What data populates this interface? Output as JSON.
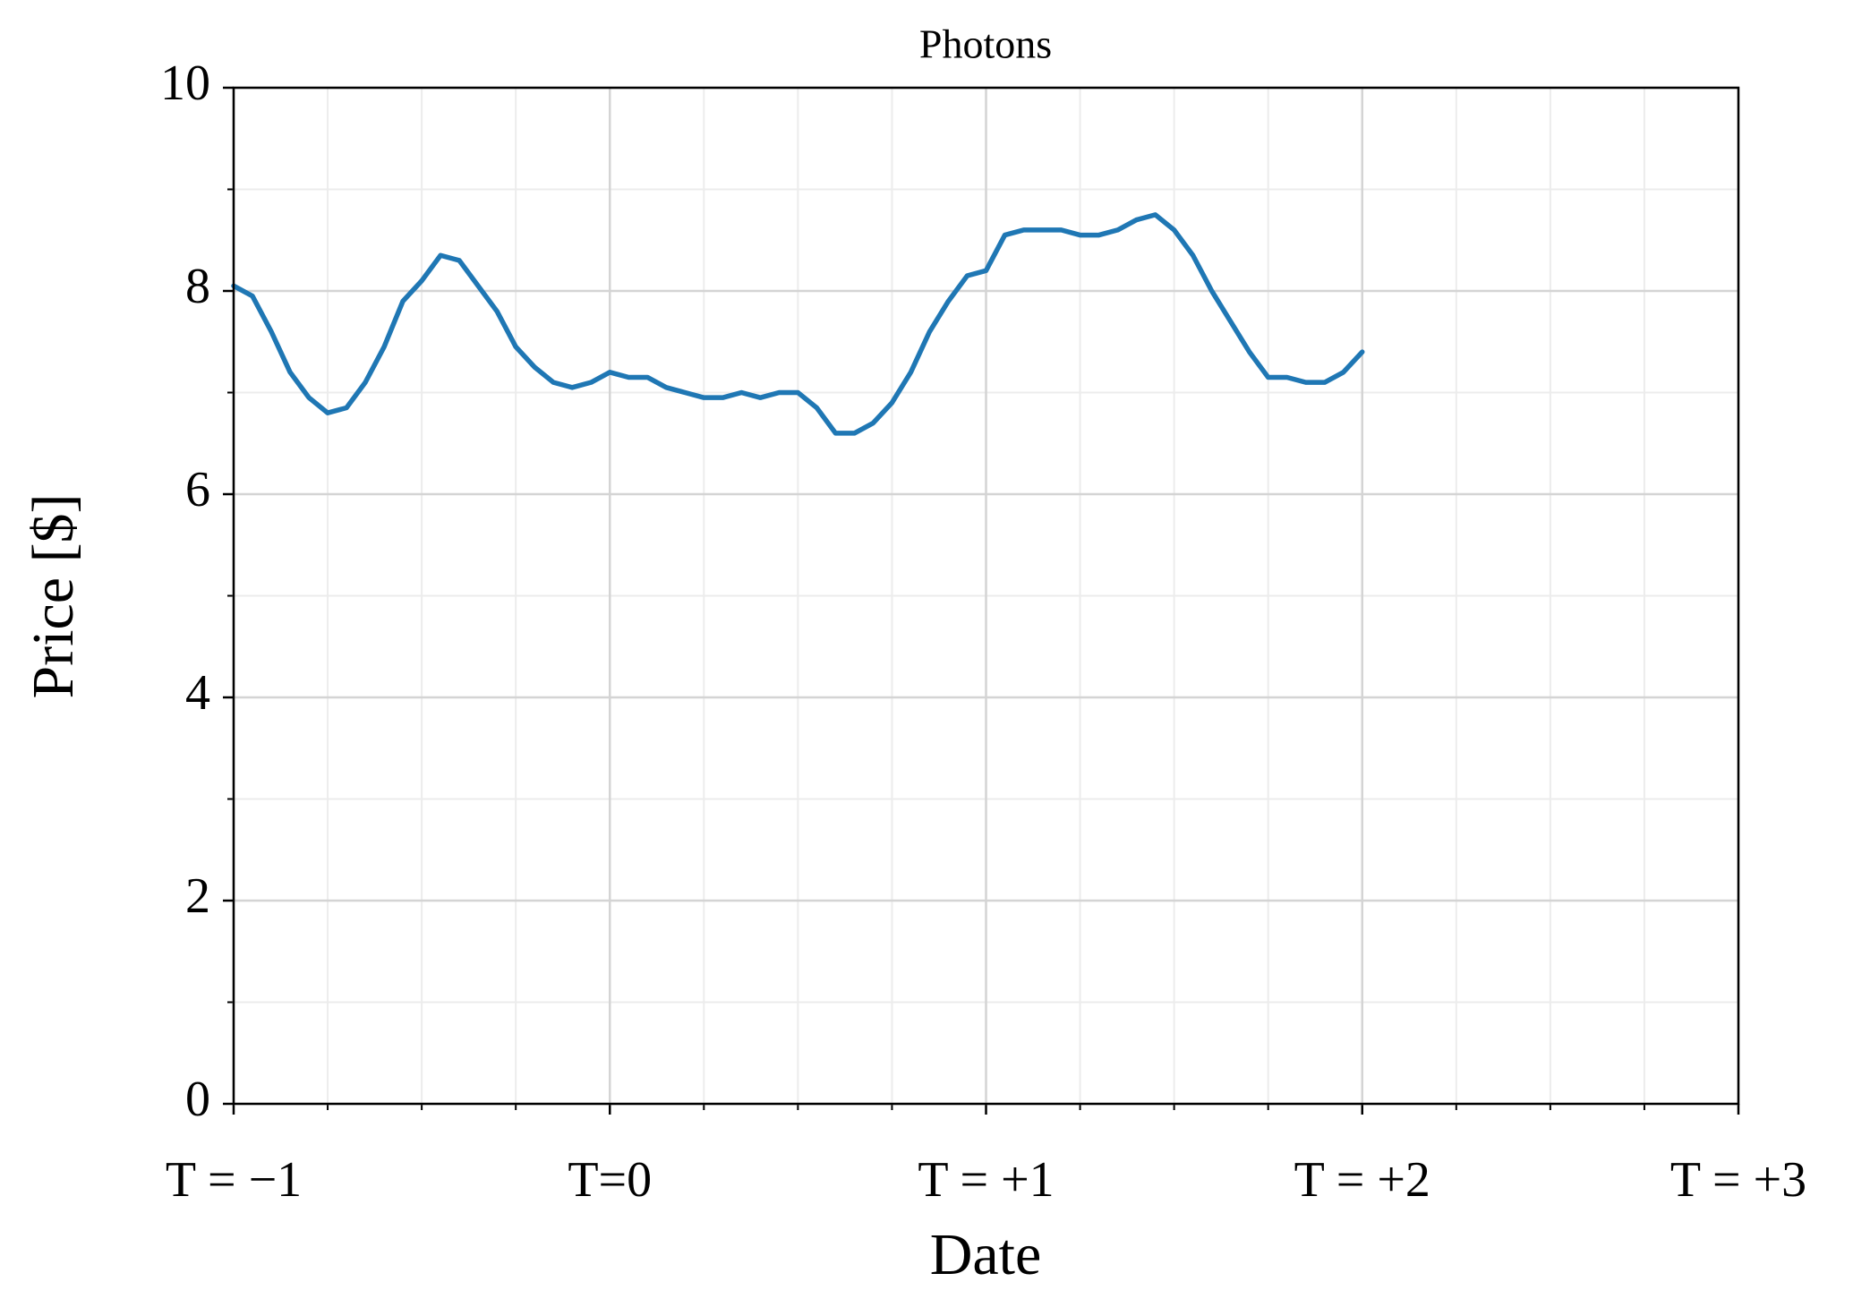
{
  "chart_data": {
    "type": "line",
    "title": "Photons",
    "x_label": "Date",
    "y_label": "Price [$]",
    "x": [
      -1.0,
      -0.95,
      -0.9,
      -0.85,
      -0.8,
      -0.75,
      -0.7,
      -0.65,
      -0.6,
      -0.55,
      -0.5,
      -0.45,
      -0.4,
      -0.35,
      -0.3,
      -0.25,
      -0.2,
      -0.15,
      -0.1,
      -0.05,
      0.0,
      0.05,
      0.1,
      0.15,
      0.2,
      0.25,
      0.3,
      0.35,
      0.4,
      0.45,
      0.5,
      0.55,
      0.6,
      0.65,
      0.7,
      0.75,
      0.8,
      0.85,
      0.9,
      0.95,
      1.0,
      1.05,
      1.1,
      1.15,
      1.2,
      1.25,
      1.3,
      1.35,
      1.4,
      1.45,
      1.5,
      1.55,
      1.6,
      1.65,
      1.7,
      1.75,
      1.8,
      1.85,
      1.9,
      1.95,
      2.0
    ],
    "series": [
      {
        "name": "Photons",
        "color": "#1f77b4",
        "values": [
          8.05,
          7.95,
          7.6,
          7.2,
          6.95,
          6.8,
          6.85,
          7.1,
          7.45,
          7.9,
          8.1,
          8.35,
          8.3,
          8.05,
          7.8,
          7.45,
          7.25,
          7.1,
          7.05,
          7.1,
          7.2,
          7.15,
          7.15,
          7.05,
          7.0,
          6.95,
          6.95,
          7.0,
          6.95,
          7.0,
          7.0,
          6.85,
          6.6,
          6.6,
          6.7,
          6.9,
          7.2,
          7.6,
          7.9,
          8.15,
          8.2,
          8.55,
          8.6,
          8.6,
          8.6,
          8.55,
          8.55,
          8.6,
          8.7,
          8.75,
          8.6,
          8.35,
          8.0,
          7.7,
          7.4,
          7.15,
          7.15,
          7.1,
          7.1,
          7.2,
          7.4
        ]
      }
    ],
    "xlim": [
      -1,
      3
    ],
    "xticks": [
      {
        "value": -1,
        "label": "T = −1"
      },
      {
        "value": 0,
        "label": "T=0"
      },
      {
        "value": 1,
        "label": "T = +1"
      },
      {
        "value": 2,
        "label": "T = +2"
      },
      {
        "value": 3,
        "label": "T = +3"
      }
    ],
    "xminorticks": [
      -0.75,
      -0.5,
      -0.25,
      0.25,
      0.5,
      0.75,
      1.25,
      1.5,
      1.75,
      2.25,
      2.5,
      2.75
    ],
    "ylim": [
      0,
      10
    ],
    "yticks": [
      0,
      2,
      4,
      6,
      8,
      10
    ],
    "yminorticks": [
      1,
      3,
      5,
      7,
      9
    ],
    "grid": true
  }
}
